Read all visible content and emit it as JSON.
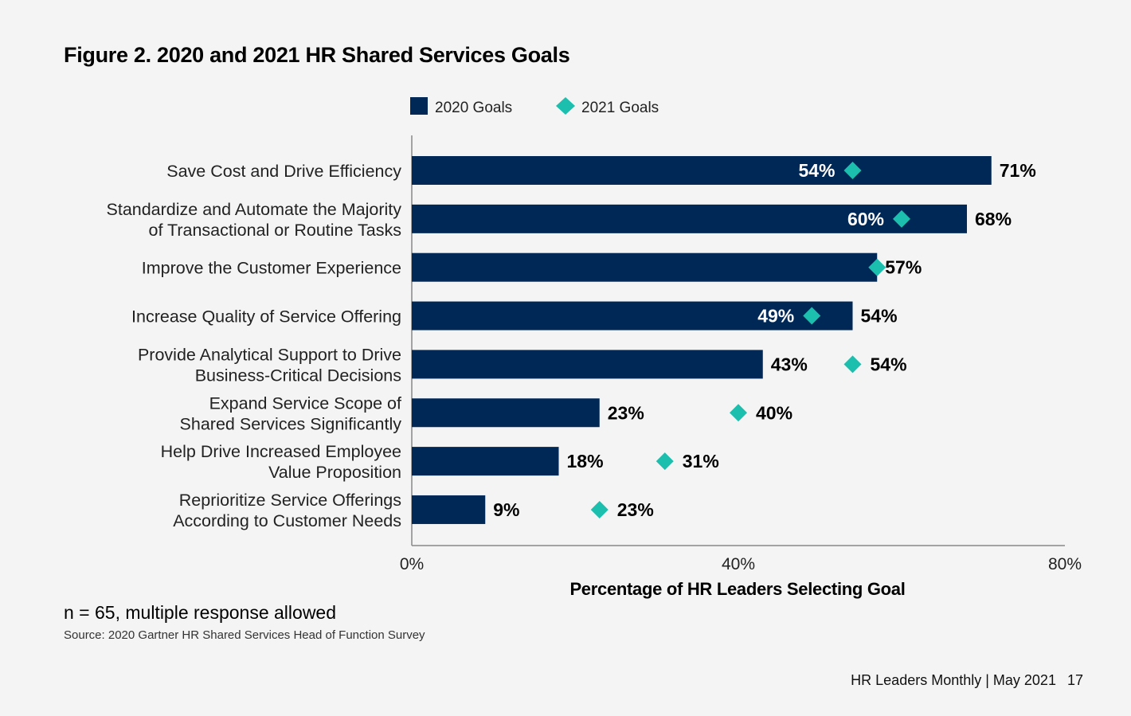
{
  "page": {
    "title": "Figure 2. 2020 and 2021 HR Shared Services Goals",
    "note": "n = 65, multiple response allowed",
    "source": "Source:  2020 Gartner HR Shared Services Head of Function Survey",
    "footer_text": "HR Leaders Monthly | May 2021",
    "page_number": "17"
  },
  "colors": {
    "bar_2020": "#002856",
    "marker_2021": "#1cbfae",
    "label_on_bar": "#ffffff",
    "label_off_bar": "#000000"
  },
  "chart_data": {
    "type": "bar",
    "orientation": "horizontal",
    "xlabel": "Percentage of HR Leaders Selecting Goal",
    "xlim": [
      0,
      80
    ],
    "xticks": [
      "0%",
      "40%",
      "80%"
    ],
    "xtick_values": [
      0,
      40,
      80
    ],
    "legend_position": "top",
    "categories": [
      [
        "Save Cost and Drive Efficiency"
      ],
      [
        "Standardize and Automate the Majority",
        "of Transactional or Routine Tasks"
      ],
      [
        "Improve the Customer Experience"
      ],
      [
        "Increase Quality of Service Offering"
      ],
      [
        "Provide Analytical Support to Drive",
        "Business-Critical Decisions"
      ],
      [
        "Expand Service Scope of",
        "Shared Services Significantly"
      ],
      [
        "Help Drive Increased Employee",
        "Value Proposition"
      ],
      [
        "Reprioritize Service Offerings",
        "According to Customer Needs"
      ]
    ],
    "series": [
      {
        "name": "2020 Goals",
        "mark": "bar",
        "values": [
          71,
          68,
          57,
          54,
          43,
          23,
          18,
          9
        ],
        "labels": [
          "71%",
          "68%",
          "57%",
          "54%",
          "43%",
          "23%",
          "18%",
          "9%"
        ]
      },
      {
        "name": "2021 Goals",
        "mark": "diamond",
        "values": [
          54,
          60,
          57,
          49,
          54,
          40,
          31,
          23
        ],
        "labels": [
          "54%",
          "60%",
          "",
          "49%",
          "54%",
          "40%",
          "31%",
          "23%"
        ]
      }
    ]
  }
}
